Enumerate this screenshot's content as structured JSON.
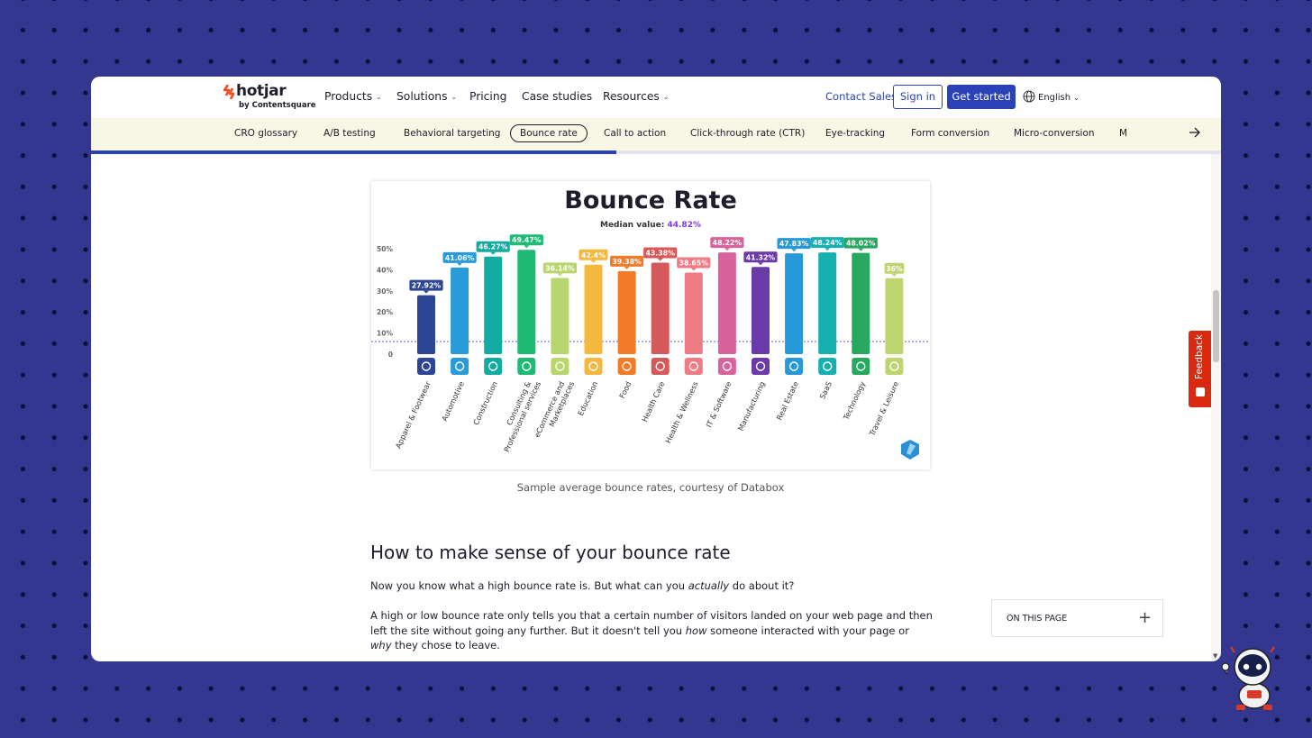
{
  "header": {
    "logo_word": "hotjar",
    "logo_sub": "by Contentsquare",
    "nav": [
      {
        "label": "Products",
        "dropdown": true
      },
      {
        "label": "Solutions",
        "dropdown": true
      },
      {
        "label": "Pricing",
        "dropdown": false
      },
      {
        "label": "Case studies",
        "dropdown": false
      },
      {
        "label": "Resources",
        "dropdown": true
      }
    ],
    "contact": "Contact Sales",
    "signin": "Sign in",
    "get_started": "Get started",
    "language": "English"
  },
  "glossary": {
    "items": [
      "CRO glossary",
      "A/B testing",
      "Behavioral targeting",
      "Bounce rate",
      "Call to action",
      "Click-through rate (CTR)",
      "Eye-tracking",
      "Form conversion",
      "Micro-conversion"
    ],
    "active": "Bounce rate",
    "clipped_item": "M",
    "scroll_progress": 0.465
  },
  "chart_data": {
    "type": "bar",
    "title": "Bounce Rate",
    "subtitle_label": "Median value:",
    "subtitle_value": "44.82%",
    "categories": [
      "Apparel & Footwear",
      "Automotive",
      "Construction",
      "Consulting & Professional services",
      "eCommerce and Marketplaces",
      "Education",
      "Food",
      "Health Care",
      "Health & Wellness",
      "IT & Software",
      "Manufacturing",
      "Real Estate",
      "SaaS",
      "Technology",
      "Travel & Leisure"
    ],
    "category_lines": [
      [
        "Apparel & Footwear"
      ],
      [
        "Automotive"
      ],
      [
        "Construction"
      ],
      [
        "Consulting &",
        "Professional services"
      ],
      [
        "eCommerce and",
        "Marketplaces"
      ],
      [
        "Education"
      ],
      [
        "Food"
      ],
      [
        "Health Care"
      ],
      [
        "Health & Wellness"
      ],
      [
        "IT & Software"
      ],
      [
        "Manufacturing"
      ],
      [
        "Real Estate"
      ],
      [
        "SaaS"
      ],
      [
        "Technology"
      ],
      [
        "Travel & Leisure"
      ]
    ],
    "values": [
      27.92,
      41.06,
      46.27,
      49.47,
      36.14,
      42.4,
      39.38,
      43.38,
      38.65,
      48.22,
      41.32,
      47.83,
      48.24,
      48.02,
      36
    ],
    "labels": [
      "27.92%",
      "41.06%",
      "46.27%",
      "49.47%",
      "36.14%",
      "42.4%",
      "39.38%",
      "43.38%",
      "38.65%",
      "48.22%",
      "41.32%",
      "47.83%",
      "48.24%",
      "48.02%",
      "36%"
    ],
    "colors": [
      "#2d4595",
      "#2a9ad8",
      "#13aaa2",
      "#1fba74",
      "#b9d66e",
      "#f4b83e",
      "#f17b28",
      "#d7585a",
      "#ef7b84",
      "#d8639b",
      "#6a3aa8",
      "#269ad9",
      "#17b0b1",
      "#28a85e",
      "#bed46f"
    ],
    "yticks": [
      0,
      10,
      20,
      30,
      40,
      50
    ],
    "ytick_labels": [
      "0",
      "10%",
      "20%",
      "30%",
      "40%",
      "50%"
    ],
    "ylim": [
      0,
      50
    ],
    "reference_line": 0,
    "icons": [
      "tshirt-icon",
      "car-icon",
      "construction-icon",
      "phone-icon",
      "cart-icon",
      "graduation-cap-icon",
      "apple-icon",
      "heart-pulse-icon",
      "lotus-icon",
      "monitor-icon",
      "factory-icon",
      "house-key-icon",
      "cloud-icon",
      "network-icon",
      "suitcase-icon"
    ],
    "grid": false,
    "legend": "none"
  },
  "content": {
    "caption": "Sample average bounce rates, courtesy of Databox",
    "heading": "How to make sense of your bounce rate",
    "p1_a": "Now you know what a high bounce rate is. But what can you ",
    "p1_em": "actually",
    "p1_b": " do about it?",
    "p2_a": "A high or low bounce rate only tells you that a certain number of visitors landed on your web page and then left the site without going any further. But it doesn't tell you ",
    "p2_em1": "how",
    "p2_b": " someone interacted with your page or ",
    "p2_em2": "why",
    "p2_c": " they chose to leave."
  },
  "onpage": {
    "label": "ON THIS PAGE",
    "plus": "+"
  },
  "feedback": {
    "label": "Feedback"
  }
}
